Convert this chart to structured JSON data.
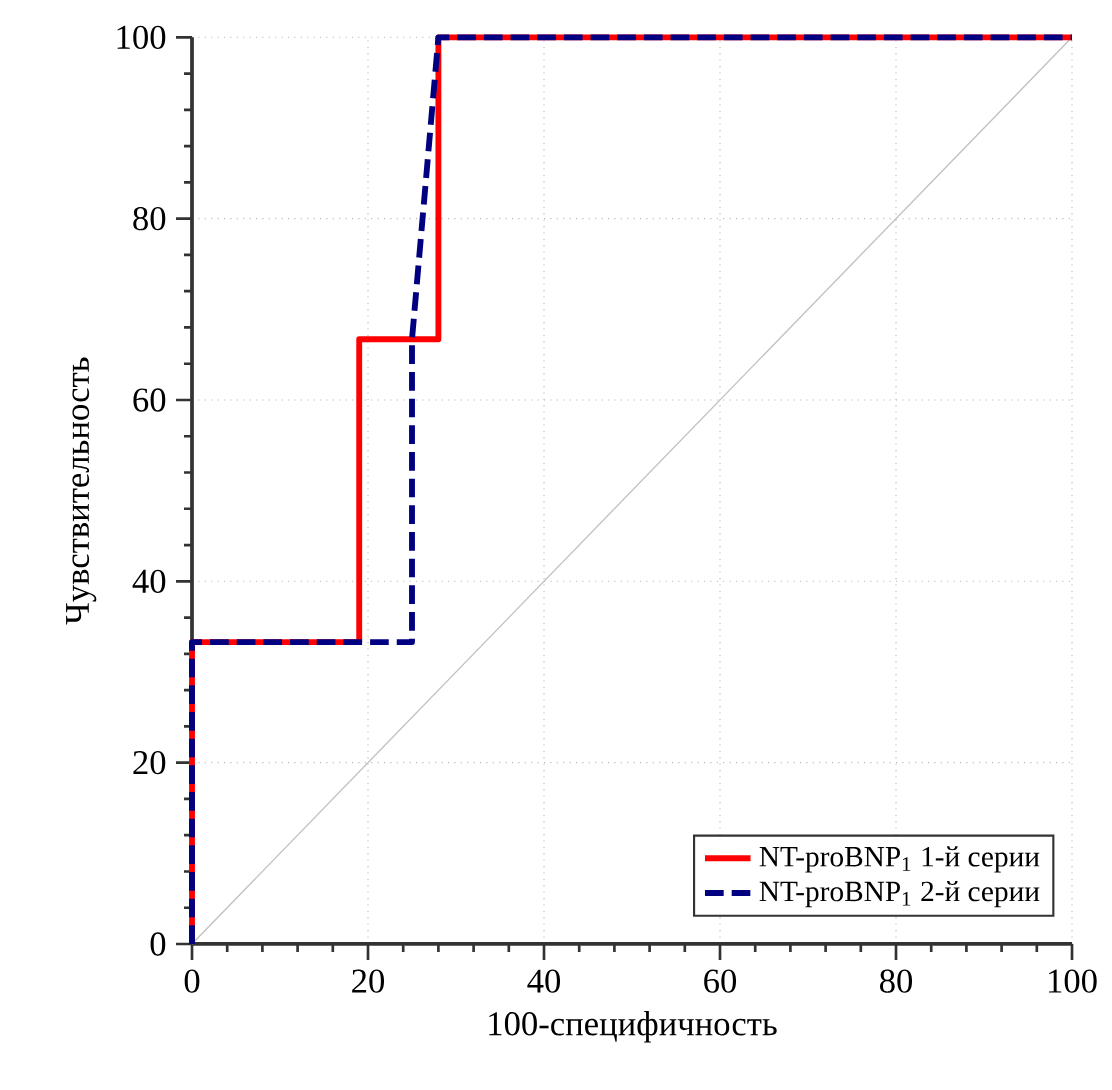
{
  "chart_data": {
    "type": "step",
    "xlabel": "100-специфичность",
    "ylabel": "Чувствительность",
    "xlim": [
      0,
      100
    ],
    "ylim": [
      0,
      100
    ],
    "xticks": [
      0,
      20,
      40,
      60,
      80,
      100
    ],
    "yticks": [
      0,
      20,
      40,
      60,
      80,
      100
    ],
    "grid": true,
    "legend": "bottom right",
    "marker": "none",
    "series": [
      {
        "name": "NT-proBNP$_{1}$  1-й серии",
        "color": "#ff0000",
        "line_style": "solid",
        "x": [
          0,
          0,
          19,
          19,
          28,
          28,
          100
        ],
        "values": [
          0,
          33.3,
          33.3,
          66.7,
          66.7,
          100,
          100
        ]
      },
      {
        "name": "NT-proBNP$_{1}$  2-й серии",
        "color": "#000080",
        "line_style": "dashed",
        "x": [
          0,
          0,
          25,
          25,
          28,
          100
        ],
        "values": [
          0,
          33.3,
          33.3,
          66.7,
          100,
          100
        ]
      },
      {
        "type": "line",
        "color": "#c0c0c0",
        "line_style": "solid",
        "x": [
          0,
          100
        ],
        "values": [
          0,
          100
        ]
      }
    ]
  }
}
